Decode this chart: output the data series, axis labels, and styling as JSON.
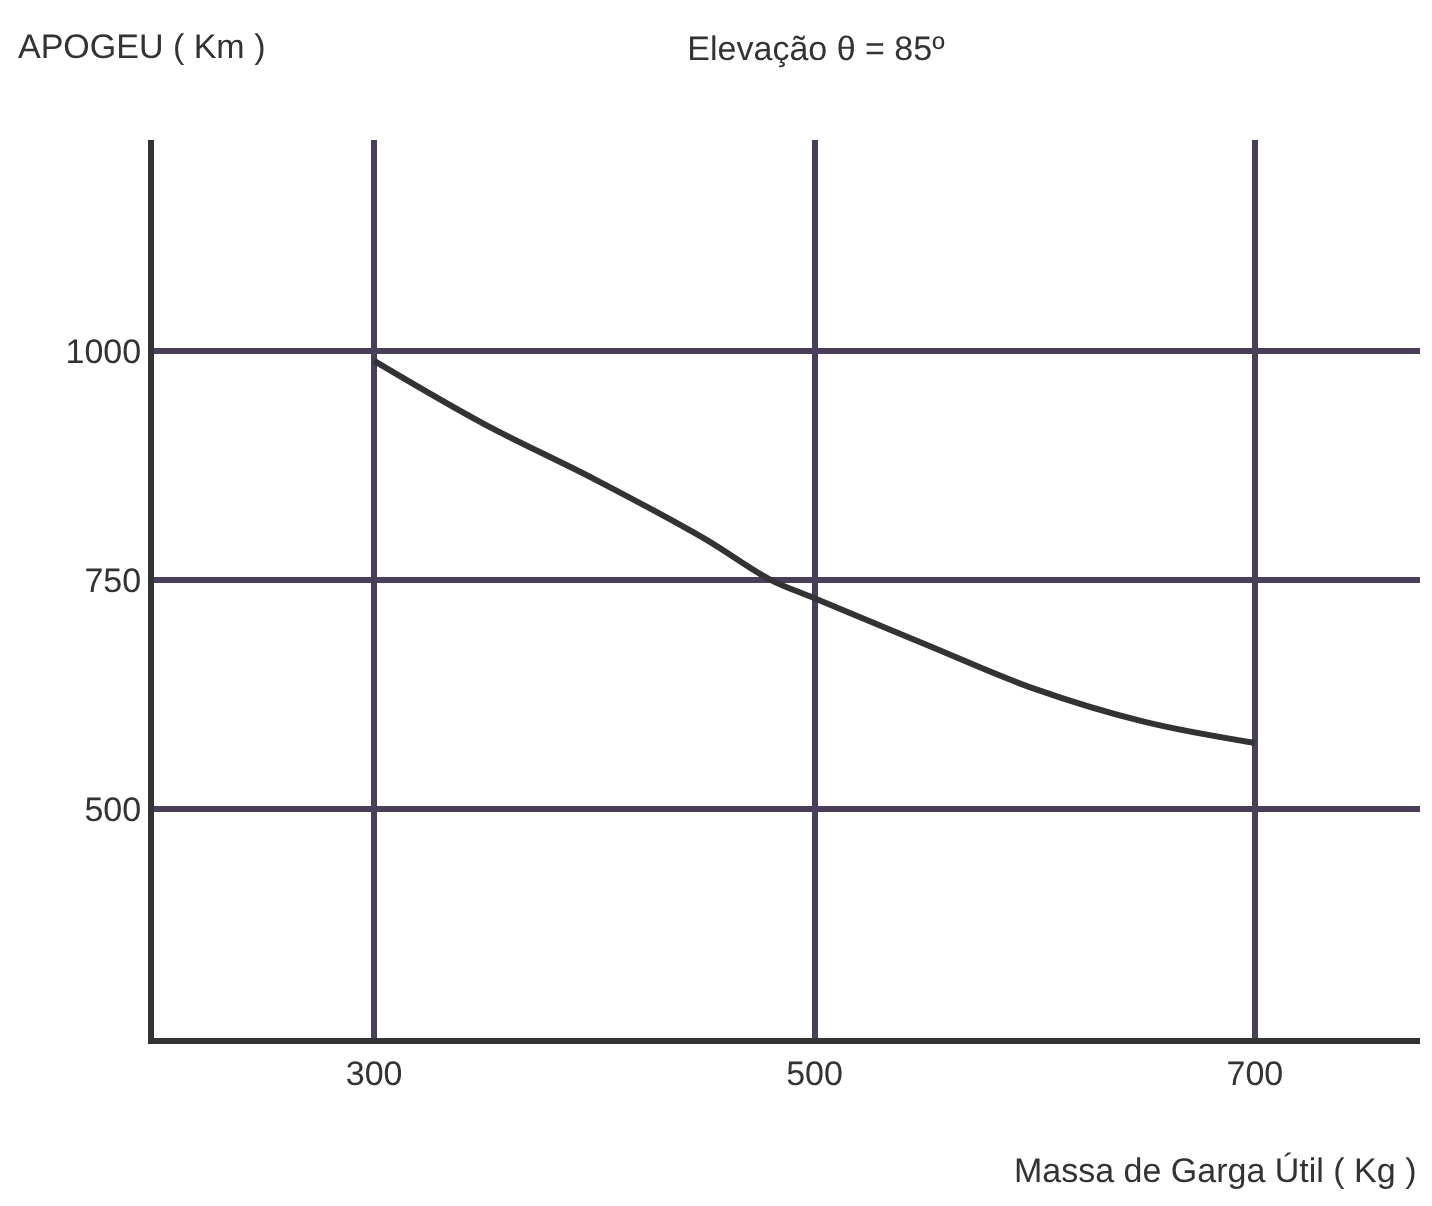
{
  "chart_data": {
    "type": "line",
    "title": "Elevação θ = 85º",
    "ylabel": "APOGEU ( Km )",
    "xlabel": "Massa de Garga Útil ( Kg )",
    "x": [
      300,
      350,
      400,
      450,
      480,
      500,
      550,
      600,
      650,
      700
    ],
    "series": [
      {
        "color": "#333333",
        "values": [
          989,
          920,
          860,
          795,
          750,
          730,
          680,
          631,
          595,
          572
        ]
      }
    ],
    "xlim": [
      200,
      775
    ],
    "ylim": [
      250,
      1230
    ],
    "xticks": [
      300,
      500,
      700
    ],
    "yticks": [
      500,
      750,
      1000
    ],
    "grid": true,
    "legend": false,
    "marker": "none",
    "line_style": "solid"
  }
}
